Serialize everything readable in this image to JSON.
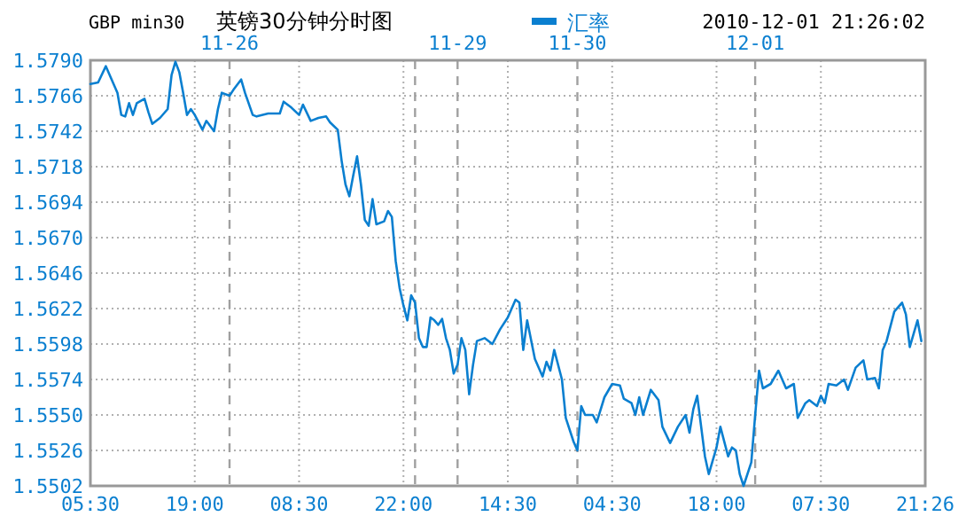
{
  "chart_data": {
    "type": "line",
    "title": "GBP min30",
    "subtitle": "英镑30分钟分时图",
    "annotations": [
      "2010-12-01 21:26:02",
      "11-26",
      "11-29",
      "11-30",
      "12-01"
    ],
    "legend": "top",
    "grid": true,
    "categories": [
      "05:30",
      null,
      null,
      null,
      null,
      null,
      null,
      null,
      null,
      null,
      null,
      null,
      null,
      null,
      null,
      null,
      null,
      null,
      null,
      null,
      null,
      null,
      null,
      null,
      null,
      null,
      null,
      "19:00",
      null,
      null,
      null,
      null,
      null,
      null,
      null,
      null,
      null,
      null,
      null,
      null,
      null,
      null,
      null,
      null,
      null,
      null,
      null,
      null,
      null,
      null,
      null,
      null,
      null,
      null,
      "08:30",
      null,
      null,
      null,
      null,
      null,
      null,
      null,
      null,
      null,
      null,
      null,
      null,
      null,
      null,
      null,
      null,
      null,
      null,
      null,
      null,
      null,
      null,
      null,
      null,
      null,
      null,
      "22:00",
      null,
      null,
      null,
      null,
      null,
      null,
      null,
      null,
      null,
      null,
      null,
      null,
      null,
      null,
      null,
      null,
      null,
      null,
      null,
      null,
      null,
      null,
      null,
      null,
      null,
      null,
      "14:30",
      null,
      null,
      null,
      null,
      null,
      null,
      null,
      null,
      null,
      null,
      null,
      null,
      null,
      null,
      null,
      null,
      null,
      null,
      null,
      null,
      null,
      null,
      null,
      null,
      null,
      null,
      "04:30",
      null,
      null,
      null,
      null,
      null,
      null,
      null,
      null,
      null,
      null,
      null,
      null,
      null,
      null,
      null,
      null,
      null,
      null,
      null,
      null,
      null,
      null,
      null,
      null,
      null,
      null,
      "18:00",
      null,
      null,
      null,
      null,
      null,
      null,
      null,
      null,
      null,
      null,
      null,
      null,
      null,
      null,
      null,
      null,
      null,
      null,
      null,
      null,
      null,
      null,
      null,
      null,
      null,
      null,
      "07:30",
      null,
      null,
      null,
      null,
      null,
      null,
      null,
      null,
      null,
      null,
      null,
      null,
      null,
      null,
      null,
      null,
      null,
      null,
      null,
      null,
      null,
      null,
      null,
      null,
      null,
      null,
      "21:26"
    ],
    "ylim": [
      1.5502,
      1.579
    ],
    "yticks": [
      1.5502,
      1.5526,
      {
        "value": 1.555,
        "label": "1.5550"
      },
      1.5574,
      1.5598,
      1.5622,
      1.5646,
      {
        "value": 1.567,
        "label": "1.5670"
      },
      1.5694,
      1.5718,
      1.5742,
      1.5766,
      {
        "value": 1.579,
        "label": "1.5790"
      }
    ],
    "series": [
      {
        "name": "汇率",
        "color": "#0a7fd0",
        "values": [
          1.5774,
          null,
          1.5775,
          null,
          1.5786,
          1.578,
          null,
          1.5768,
          1.5753,
          1.5752,
          1.5761,
          1.5753,
          1.5761,
          null,
          1.5764,
          1.5755,
          1.5747,
          null,
          1.5751,
          1.5754,
          1.5757,
          1.578,
          1.5789,
          1.5782,
          1.5768,
          1.5753,
          1.5757,
          1.5753,
          null,
          1.5743,
          1.5749,
          null,
          1.5742,
          1.5757,
          1.5768,
          null,
          1.5766,
          1.577,
          null,
          1.5777,
          1.5768,
          null,
          1.5753,
          1.5752,
          null,
          null,
          1.5754,
          null,
          null,
          1.5754,
          1.5762,
          null,
          1.5758,
          null,
          1.5753,
          1.576,
          null,
          1.5749,
          null,
          1.5751,
          null,
          1.5752,
          1.5748,
          null,
          1.5743,
          1.5722,
          1.5706,
          1.5698,
          1.5712,
          1.5725,
          1.5706,
          1.5682,
          1.5678,
          1.5696,
          1.5679,
          null,
          1.5681,
          1.5688,
          1.5684,
          1.5654,
          1.5636,
          1.5624,
          1.5614,
          1.5631,
          1.5626,
          1.5602,
          1.5596,
          1.5596,
          1.5616,
          1.5614,
          1.5611,
          1.5615,
          1.5602,
          1.5594,
          1.5578,
          1.5584,
          1.5602,
          1.5594,
          1.5564,
          1.5584,
          1.56,
          null,
          1.5602,
          null,
          1.5598,
          null,
          1.5608,
          null,
          1.5616,
          null,
          1.5628,
          1.5626,
          1.5594,
          1.5614,
          null,
          1.5588,
          null,
          1.5576,
          1.5586,
          1.558,
          1.5594,
          null,
          1.5574,
          1.5548,
          null,
          1.5532,
          1.5526,
          1.5556,
          1.555,
          null,
          1.555,
          1.5545,
          null,
          1.5562,
          null,
          1.5571,
          null,
          1.557,
          1.5561,
          null,
          1.5558,
          1.555,
          1.5562,
          1.555,
          null,
          1.5567,
          null,
          1.556,
          1.5542,
          null,
          1.5531,
          null,
          1.5542,
          null,
          1.555,
          1.5538,
          1.5554,
          1.5563,
          null,
          1.5522,
          1.551,
          null,
          1.5528,
          1.5542,
          null,
          1.5522,
          1.5528,
          1.5526,
          1.551,
          1.5502,
          null,
          1.5518,
          1.555,
          1.558,
          1.5568,
          null,
          1.5571,
          null,
          1.558,
          null,
          1.5568,
          null,
          1.5571,
          1.5548,
          null,
          1.5558,
          1.556,
          null,
          1.5556,
          1.5563,
          1.5558,
          1.5571,
          null,
          1.557,
          null,
          1.5574,
          1.5567,
          null,
          1.5582,
          null,
          1.5587,
          1.5574,
          null,
          1.5575,
          1.5568,
          1.5594,
          1.56,
          null,
          1.562,
          null,
          1.5626,
          1.5618,
          1.5596,
          null,
          1.5614,
          1.56,
          null
        ]
      }
    ]
  }
}
